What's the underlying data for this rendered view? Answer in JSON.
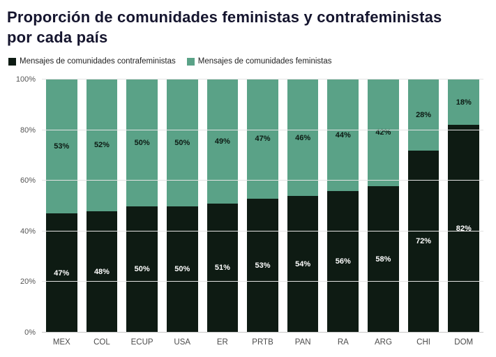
{
  "title": "Proporción de comunidades feministas y contrafeministas por cada país",
  "legend": [
    {
      "label": "Mensajes de comunidades contrafeministas",
      "color": "#0e1b13"
    },
    {
      "label": "Mensajes de comunidades feministas",
      "color": "#5aa287"
    }
  ],
  "colors": {
    "title": "#15152e",
    "bar_black": "#0e1b13",
    "bar_green": "#5aa287",
    "label_on_green": "#0c1a13",
    "label_on_black": "#ffffff",
    "grid": "#e3e3e3",
    "axis_text": "#555555"
  },
  "chart_data": {
    "type": "bar",
    "stacked": true,
    "percent": true,
    "title": "Proporción de comunidades feministas y contrafeministas por cada país",
    "categories": [
      "MEX",
      "COL",
      "ECUP",
      "USA",
      "ER",
      "PRTB",
      "PAN",
      "RA",
      "ARG",
      "CHI",
      "DOM"
    ],
    "series": [
      {
        "name": "Mensajes de comunidades contrafeministas",
        "color": "#0e1b13",
        "values": [
          47,
          48,
          50,
          50,
          51,
          53,
          54,
          56,
          58,
          72,
          82
        ]
      },
      {
        "name": "Mensajes de comunidades feministas",
        "color": "#5aa287",
        "values": [
          53,
          52,
          50,
          50,
          49,
          47,
          46,
          44,
          42,
          28,
          18
        ]
      }
    ],
    "y_ticks": [
      "0%",
      "20%",
      "40%",
      "60%",
      "80%",
      "100%"
    ],
    "ylim": [
      0,
      100
    ],
    "xlabel": "",
    "ylabel": "",
    "grid": true,
    "legend_position": "top"
  }
}
